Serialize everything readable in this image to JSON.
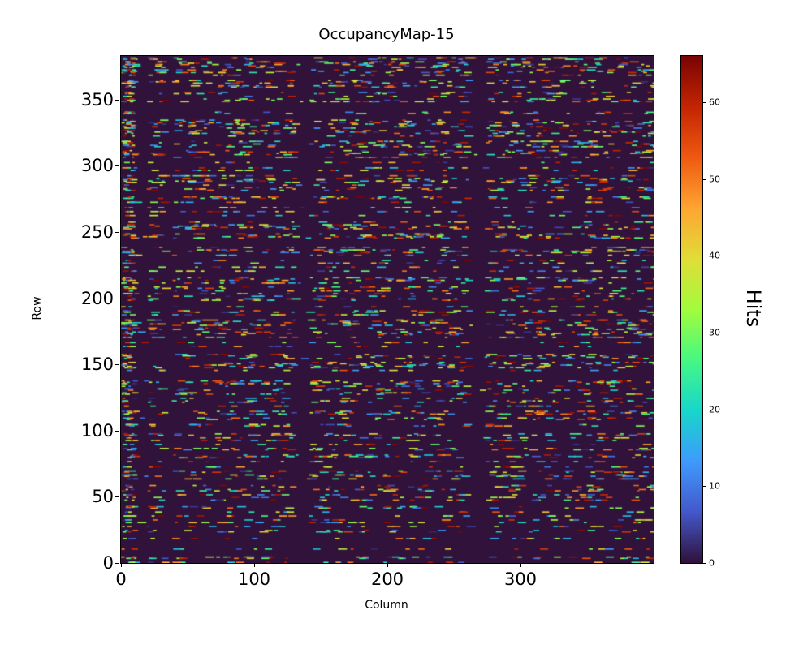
{
  "chart_data": {
    "type": "heatmap",
    "title": "OccupancyMap-15",
    "xlabel": "Column",
    "ylabel": "Row",
    "colorbar_label": "Hits",
    "xlim": [
      0,
      400
    ],
    "ylim": [
      0,
      383
    ],
    "clim": [
      0,
      66
    ],
    "x_ticks": [
      0,
      100,
      200,
      300
    ],
    "y_ticks": [
      0,
      50,
      100,
      150,
      200,
      250,
      300,
      350
    ],
    "colorbar_ticks": [
      0,
      10,
      20,
      30,
      40,
      50,
      60
    ],
    "colormap": "turbo",
    "colormap_stops": [
      [
        0.0,
        "#30123B"
      ],
      [
        0.1,
        "#4458CB"
      ],
      [
        0.2,
        "#3E9BFE"
      ],
      [
        0.3,
        "#18D6CB"
      ],
      [
        0.4,
        "#46F884"
      ],
      [
        0.5,
        "#A2FC3C"
      ],
      [
        0.6,
        "#E1DD37"
      ],
      [
        0.7,
        "#FEA632"
      ],
      [
        0.8,
        "#EF5A11"
      ],
      [
        0.9,
        "#C42503"
      ],
      [
        1.0,
        "#7A0403"
      ]
    ],
    "zero_background_color": "#30123B",
    "grid": false,
    "legend": "colorbar-right",
    "pattern": {
      "seed": 15,
      "row_active_probability": 0.45,
      "dashes_per_active_row_min": 18,
      "dashes_per_active_row_max": 34,
      "dash_length_cols_min": 2,
      "dash_length_cols_max": 7,
      "left_edge_dense_columns": [
        0,
        9
      ],
      "dead_column_bands": [
        [
          10,
          19
        ],
        [
          31,
          38
        ],
        [
          129,
          141
        ],
        [
          259,
          273
        ]
      ],
      "dead_band_pass_probability": 0.05,
      "hit_value_min": 2,
      "hit_value_max": 66
    },
    "description": "Sparse occupancy heatmap: horizontal dashed streaks of hit counts (0-66, turbo colormap) over a dark zero-count background, with vertical dead column bands around columns 10-19, 31-38, 129-141 and 259-273."
  }
}
